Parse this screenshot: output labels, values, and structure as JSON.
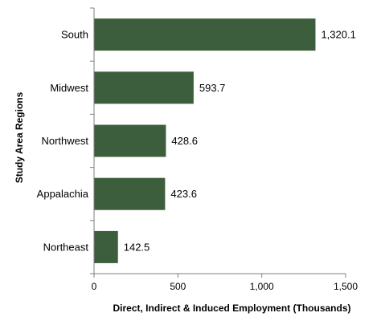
{
  "chart_data": {
    "type": "bar",
    "orientation": "horizontal",
    "categories": [
      "South",
      "Midwest",
      "Northwest",
      "Appalachia",
      "Northeast"
    ],
    "values": [
      1320.1,
      593.7,
      428.6,
      423.6,
      142.5
    ],
    "value_labels": [
      "1,320.1",
      "593.7",
      "428.6",
      "423.6",
      "142.5"
    ],
    "xlabel": "Direct, Indirect & Induced Employment (Thousands)",
    "ylabel": "Study Area Regions",
    "xlim": [
      0,
      1500
    ],
    "xticks": [
      0,
      500,
      1000,
      1500
    ],
    "xtick_labels": [
      "0",
      "500",
      "1,000",
      "1,500"
    ],
    "grid": false,
    "bar_color": "#3d5e3c"
  }
}
